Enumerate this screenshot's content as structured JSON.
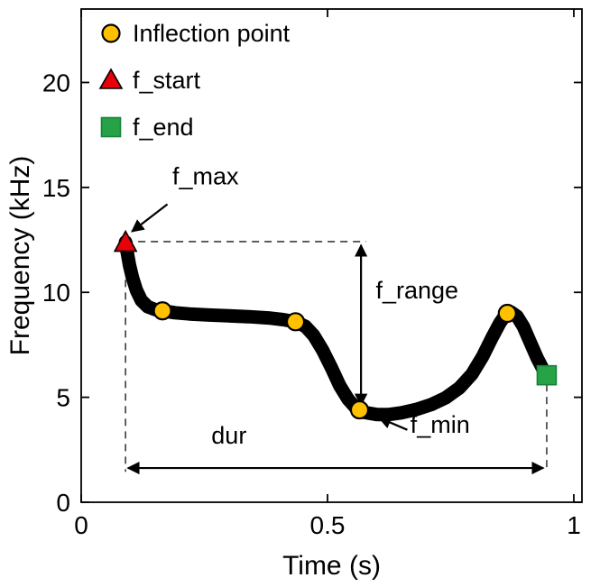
{
  "chart_data": {
    "type": "line",
    "title": "",
    "xlabel": "Time (s)",
    "ylabel": "Frequency (kHz)",
    "xlim": [
      0,
      1.0165
    ],
    "ylim": [
      0,
      23.5
    ],
    "grid": false,
    "xticks": [
      {
        "value": 0,
        "label": "0"
      },
      {
        "value": 0.5,
        "label": "0.5"
      },
      {
        "value": 1,
        "label": "1"
      }
    ],
    "yticks": [
      {
        "value": 0,
        "label": "0"
      },
      {
        "value": 5,
        "label": "5"
      },
      {
        "value": 10,
        "label": "10"
      },
      {
        "value": 15,
        "label": "15"
      },
      {
        "value": 20,
        "label": "20"
      }
    ],
    "legend": {
      "position": "top-left-inside",
      "entries": [
        {
          "marker": "circle",
          "color": "#FFC000",
          "edge": "#000000",
          "label": "Inflection point"
        },
        {
          "marker": "triangle",
          "color": "#E8000B",
          "edge": "#000000",
          "label": "f_start"
        },
        {
          "marker": "square",
          "color": "#26A347",
          "edge": "#17823A",
          "label": "f_end"
        }
      ]
    },
    "series": [
      {
        "name": "frequency-contour",
        "type": "line",
        "color": "#000000",
        "line_width": 15,
        "points": [
          [
            0.09,
            12.4
          ],
          [
            0.093,
            11.95
          ],
          [
            0.098,
            11.3
          ],
          [
            0.104,
            10.7
          ],
          [
            0.112,
            10.1
          ],
          [
            0.122,
            9.62
          ],
          [
            0.135,
            9.32
          ],
          [
            0.15,
            9.18
          ],
          [
            0.165,
            9.12
          ],
          [
            0.19,
            9.03
          ],
          [
            0.22,
            8.97
          ],
          [
            0.26,
            8.92
          ],
          [
            0.3,
            8.88
          ],
          [
            0.34,
            8.84
          ],
          [
            0.38,
            8.78
          ],
          [
            0.41,
            8.7
          ],
          [
            0.435,
            8.6
          ],
          [
            0.455,
            8.38
          ],
          [
            0.472,
            7.95
          ],
          [
            0.49,
            7.25
          ],
          [
            0.508,
            6.4
          ],
          [
            0.525,
            5.55
          ],
          [
            0.542,
            4.9
          ],
          [
            0.558,
            4.48
          ],
          [
            0.575,
            4.28
          ],
          [
            0.6,
            4.18
          ],
          [
            0.625,
            4.18
          ],
          [
            0.65,
            4.26
          ],
          [
            0.68,
            4.42
          ],
          [
            0.71,
            4.65
          ],
          [
            0.74,
            4.98
          ],
          [
            0.768,
            5.45
          ],
          [
            0.793,
            6.1
          ],
          [
            0.815,
            6.95
          ],
          [
            0.834,
            7.85
          ],
          [
            0.85,
            8.55
          ],
          [
            0.862,
            8.95
          ],
          [
            0.873,
            9.05
          ],
          [
            0.885,
            8.85
          ],
          [
            0.898,
            8.35
          ],
          [
            0.912,
            7.6
          ],
          [
            0.926,
            6.85
          ],
          [
            0.937,
            6.35
          ],
          [
            0.945,
            6.05
          ]
        ]
      }
    ],
    "markers": {
      "inflection_points": [
        [
          0.165,
          9.12
        ],
        [
          0.435,
          8.6
        ],
        [
          0.565,
          4.4
        ],
        [
          0.865,
          9.0
        ]
      ],
      "f_start": [
        0.09,
        12.35
      ],
      "f_end": [
        0.945,
        6.05
      ]
    },
    "annotations": {
      "f_max": {
        "text": "f_max",
        "text_pos": [
          0.185,
          15.15
        ],
        "arrow_from": [
          0.175,
          14.2
        ],
        "arrow_to": [
          0.103,
          12.9
        ]
      },
      "f_min": {
        "text": "f_min",
        "text_pos": [
          0.668,
          3.3
        ],
        "arrow_from": [
          0.662,
          3.45
        ],
        "arrow_to": [
          0.605,
          4.02
        ]
      },
      "f_range": {
        "text": "f_range",
        "text_pos": [
          0.598,
          9.7
        ],
        "arrow_x": 0.568,
        "arrow_y_top": 12.25,
        "arrow_y_bottom": 4.62
      },
      "dur": {
        "text": "dur",
        "text_pos": [
          0.3,
          2.8
        ],
        "arrow_y": 1.63,
        "arrow_x_left": 0.095,
        "arrow_x_right": 0.938
      },
      "dashed_lines": [
        {
          "name": "f-max-level",
          "from": [
            0.09,
            12.42
          ],
          "to": [
            0.578,
            12.42
          ]
        },
        {
          "name": "start-time",
          "from": [
            0.09,
            12.4
          ],
          "to": [
            0.09,
            1.45
          ]
        },
        {
          "name": "end-time",
          "from": [
            0.945,
            5.62
          ],
          "to": [
            0.945,
            1.45
          ]
        }
      ]
    },
    "styles": {
      "curve_color": "#000000",
      "marker_yellow": "#FFC000",
      "marker_red": "#E8000B",
      "marker_green": "#26A347",
      "marker_green_edge": "#17823A",
      "dash_color": "#3a3a3a",
      "arrow_color": "#000000",
      "axis_color": "#000000",
      "background": "#ffffff"
    }
  }
}
